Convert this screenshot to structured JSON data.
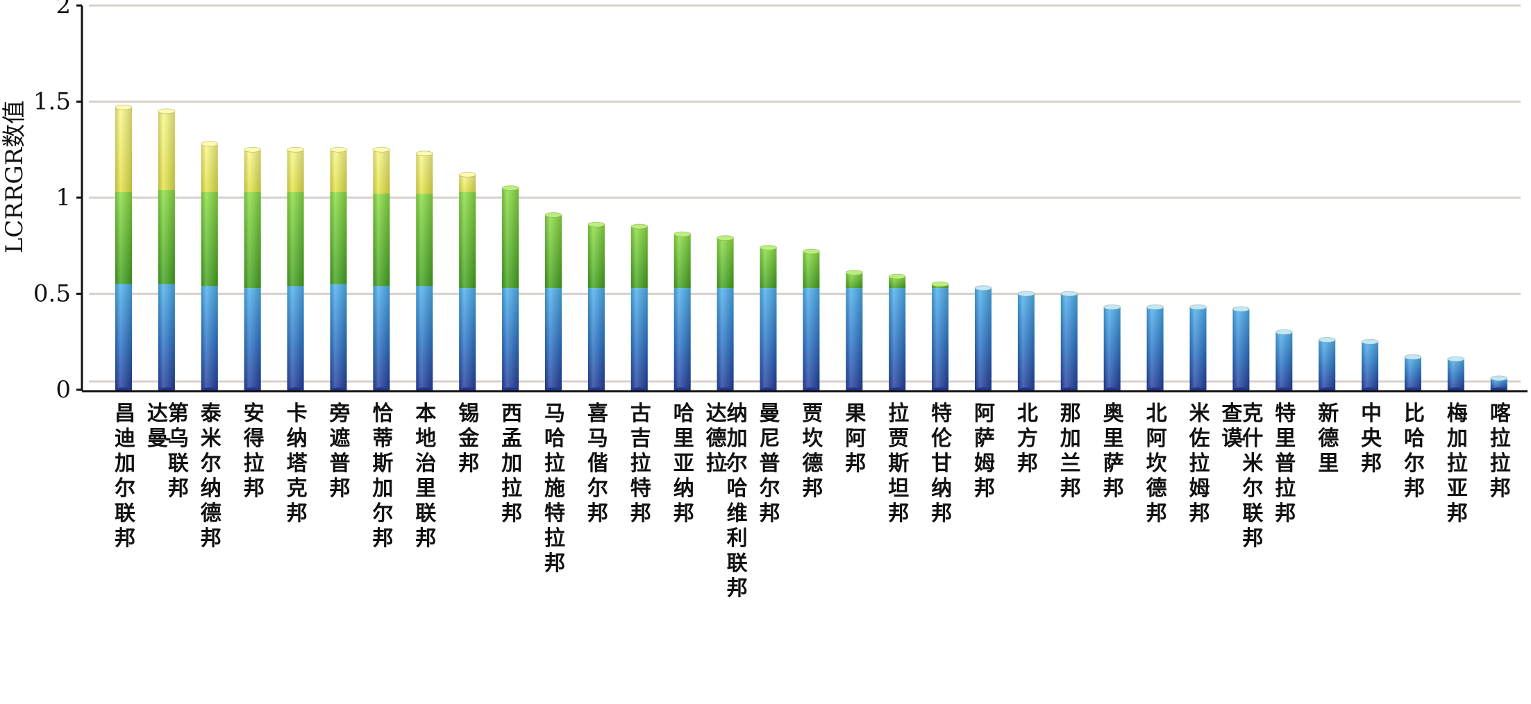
{
  "chart_data": {
    "type": "bar",
    "stacked": true,
    "title": "",
    "xlabel": "",
    "ylabel": "LCRRGR数值",
    "ylim": [
      0,
      2
    ],
    "yticks": [
      0,
      0.5,
      1,
      1.5,
      2
    ],
    "ytick_labels": [
      "0",
      "0.5",
      "1",
      "1.5",
      "2"
    ],
    "grid": true,
    "legend": "none",
    "colors": {
      "blue": "#2f7fd0",
      "green": "#5cbf2a",
      "yellow": "#ecec55",
      "grid": "#d8d0cc",
      "axis": "#111111"
    },
    "categories": [
      "昌迪加尔联邦",
      "达曼-第乌联邦",
      "泰米尔纳德邦",
      "安得拉邦",
      "卡纳塔克邦",
      "旁遮普邦",
      "恰蒂斯加尔邦",
      "本地治里联邦",
      "锡金邦",
      "西孟加拉邦",
      "马哈拉施特拉邦",
      "喜马偕尔邦",
      "古吉拉特邦",
      "哈里亚纳邦",
      "达德拉-纳加尔哈维利联邦",
      "曼尼普尔邦",
      "贾坎德邦",
      "果阿邦",
      "拉贾斯坦邦",
      "特伦甘纳邦",
      "阿萨姆邦",
      "北方邦",
      "那加兰邦",
      "奥里萨邦",
      "北阿坎德邦",
      "米佐拉姆邦",
      "查谟-克什米尔联邦",
      "特里普拉邦",
      "新德里",
      "中央邦",
      "比哈尔邦",
      "梅加拉亚邦",
      "喀拉拉邦"
    ],
    "totals": [
      1.47,
      1.45,
      1.28,
      1.25,
      1.25,
      1.25,
      1.25,
      1.23,
      1.12,
      1.05,
      0.91,
      0.86,
      0.85,
      0.81,
      0.79,
      0.74,
      0.72,
      0.61,
      0.59,
      0.55,
      0.53,
      0.5,
      0.5,
      0.43,
      0.43,
      0.43,
      0.42,
      0.3,
      0.26,
      0.25,
      0.17,
      0.16,
      0.06
    ],
    "segment_bounds": [
      0.55,
      1.03
    ],
    "series": [
      {
        "values": [
          0.55,
          0.55,
          0.54,
          0.53,
          0.54,
          0.55,
          0.54,
          0.54,
          0.53,
          0.53,
          0.53,
          0.53,
          0.53,
          0.53,
          0.53,
          0.53,
          0.53,
          0.53,
          0.53,
          0.53,
          0.53,
          0.5,
          0.5,
          0.43,
          0.43,
          0.43,
          0.42,
          0.3,
          0.26,
          0.25,
          0.17,
          0.16,
          0.06
        ]
      },
      {
        "values": [
          0.48,
          0.49,
          0.49,
          0.5,
          0.49,
          0.48,
          0.48,
          0.48,
          0.5,
          0.52,
          0.38,
          0.33,
          0.32,
          0.28,
          0.26,
          0.21,
          0.19,
          0.08,
          0.06,
          0.02,
          0.0,
          0,
          0,
          0,
          0,
          0,
          0,
          0,
          0,
          0,
          0,
          0,
          0
        ]
      },
      {
        "values": [
          0.44,
          0.41,
          0.25,
          0.22,
          0.22,
          0.22,
          0.23,
          0.21,
          0.09,
          0.0,
          0,
          0,
          0,
          0,
          0,
          0,
          0,
          0,
          0,
          0,
          0,
          0,
          0,
          0,
          0,
          0,
          0,
          0,
          0,
          0,
          0,
          0,
          0
        ]
      }
    ]
  }
}
